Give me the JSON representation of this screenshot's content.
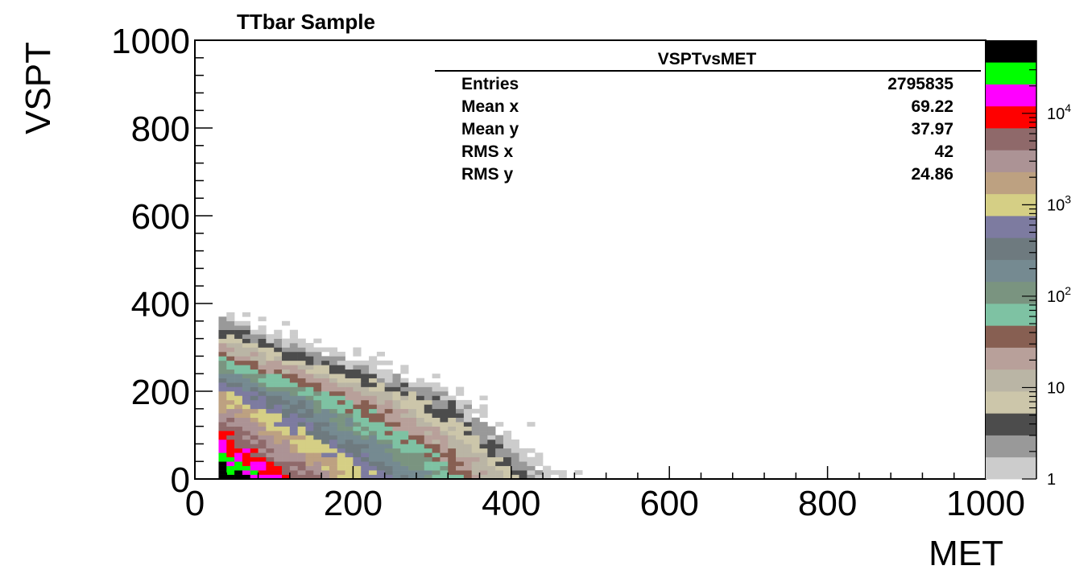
{
  "chart_data": {
    "type": "heatmap",
    "title": "TTbar Sample",
    "xlabel": "MET",
    "ylabel": "VSPT",
    "xlim": [
      0,
      1000
    ],
    "ylim": [
      0,
      1000
    ],
    "x_ticks": [
      "0",
      "200",
      "400",
      "600",
      "800",
      "1000"
    ],
    "y_ticks": [
      "0",
      "200",
      "400",
      "600",
      "800",
      "1000"
    ],
    "z_scale": "log",
    "z_ticks": [
      {
        "value": 1,
        "label": "1"
      },
      {
        "value": 10,
        "label": "10"
      },
      {
        "value": 100,
        "label": "10",
        "exp": "2"
      },
      {
        "value": 1000,
        "label": "10",
        "exp": "3"
      },
      {
        "value": 10000,
        "label": "10",
        "exp": "4"
      }
    ],
    "palette": [
      "#cccccc",
      "#999999",
      "#4c4c4c",
      "#ccc6aa",
      "#bab5a5",
      "#b8a09a",
      "#875f52",
      "#7ec2a3",
      "#7a9480",
      "#758a91",
      "#6e7a7f",
      "#7d7ba0",
      "#d5cf85",
      "#bda181",
      "#ac9395",
      "#8f696a",
      "#ff0000",
      "#ff00ff",
      "#00ff00",
      "#000000"
    ],
    "description": "2D histogram of VSPT vs MET; counts concentrated at low MET and low VSPT, falling off along a diagonal band",
    "stats": {
      "name": "VSPTvsMET",
      "rows": [
        {
          "label": "Entries",
          "value": "2795835"
        },
        {
          "label": "Mean x",
          "value": "69.22"
        },
        {
          "label": "Mean y",
          "value": "37.97"
        },
        {
          "label": "RMS x",
          "value": "42"
        },
        {
          "label": "RMS y",
          "value": "24.86"
        }
      ]
    }
  }
}
